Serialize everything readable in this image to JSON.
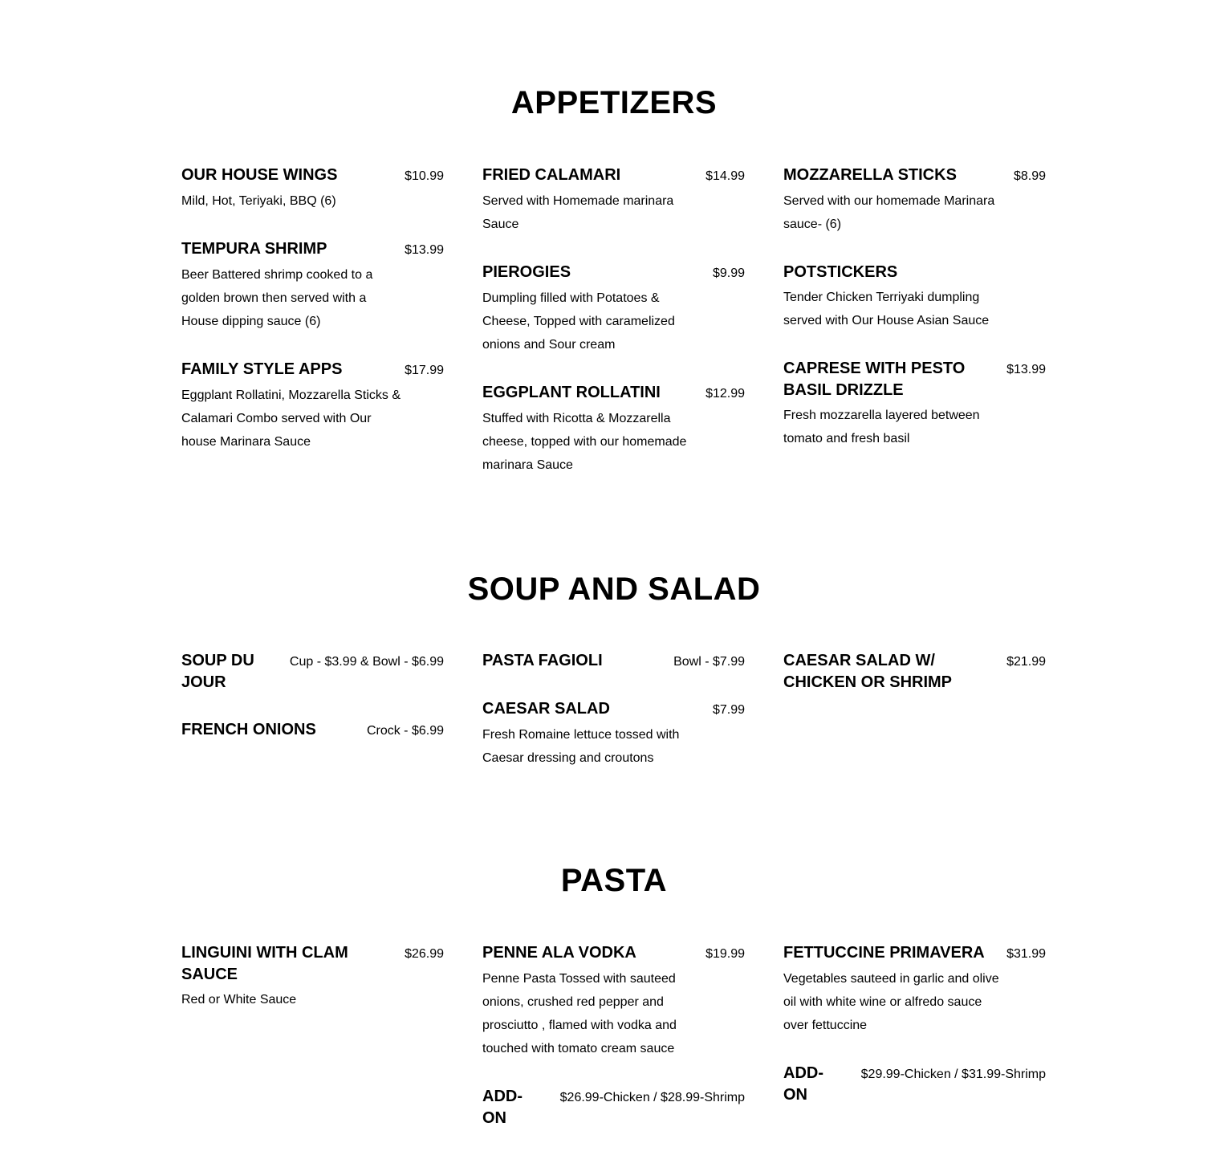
{
  "sections": [
    {
      "title": "APPETIZERS",
      "columns": [
        [
          {
            "name": "OUR HOUSE WINGS",
            "price": "$10.99",
            "desc": "Mild, Hot, Teriyaki, BBQ (6)"
          },
          {
            "name": "TEMPURA SHRIMP",
            "price": "$13.99",
            "desc": "Beer Battered shrimp cooked to a golden brown then served with a House dipping sauce (6)"
          },
          {
            "name": "FAMILY STYLE APPS",
            "price": "$17.99",
            "desc": "Eggplant Rollatini, Mozzarella Sticks & Calamari Combo served with Our house Marinara Sauce"
          }
        ],
        [
          {
            "name": "FRIED CALAMARI",
            "price": "$14.99",
            "desc": "Served with Homemade marinara Sauce"
          },
          {
            "name": "PIEROGIES",
            "price": "$9.99",
            "desc": "Dumpling filled with Potatoes & Cheese, Topped with caramelized onions and Sour cream"
          },
          {
            "name": "EGGPLANT ROLLATINI",
            "price": "$12.99",
            "desc": "Stuffed with Ricotta & Mozzarella cheese, topped with our homemade marinara Sauce"
          }
        ],
        [
          {
            "name": "MOZZARELLA STICKS",
            "price": "$8.99",
            "desc": "Served with our homemade Marinara sauce- (6)"
          },
          {
            "name": "POTSTICKERS",
            "price": "",
            "desc": "Tender Chicken Terriyaki dumpling served with Our House Asian Sauce"
          },
          {
            "name": "CAPRESE WITH PESTO BASIL DRIZZLE",
            "price": "$13.99",
            "desc": "Fresh mozzarella layered between tomato and fresh basil"
          }
        ]
      ]
    },
    {
      "title": "SOUP AND SALAD",
      "columns": [
        [
          {
            "name": "SOUP DU JOUR",
            "price": "Cup - $3.99 & Bowl - $6.99",
            "desc": ""
          },
          {
            "name": "FRENCH ONIONS",
            "price": "Crock - $6.99",
            "desc": ""
          }
        ],
        [
          {
            "name": "PASTA FAGIOLI",
            "price": "Bowl - $7.99",
            "desc": ""
          },
          {
            "name": "CAESAR SALAD",
            "price": "$7.99",
            "desc": "Fresh Romaine lettuce tossed with Caesar dressing and croutons"
          }
        ],
        [
          {
            "name": "CAESAR SALAD W/ CHICKEN OR SHRIMP",
            "price": "$21.99",
            "desc": ""
          }
        ]
      ]
    },
    {
      "title": "PASTA",
      "columns": [
        [
          {
            "name": "LINGUINI WITH CLAM SAUCE",
            "price": "$26.99",
            "desc": "Red or White Sauce"
          }
        ],
        [
          {
            "name": "PENNE ALA VODKA",
            "price": "$19.99",
            "desc": "Penne Pasta Tossed with sauteed onions, crushed red pepper and prosciutto , flamed with vodka and touched with tomato cream sauce"
          },
          {
            "name": "ADD-ON",
            "price": "$26.99-Chicken / $28.99-Shrimp",
            "desc": ""
          }
        ],
        [
          {
            "name": "FETTUCCINE PRIMAVERA",
            "price": "$31.99",
            "desc": "Vegetables sauteed in garlic and olive oil with white wine or alfredo sauce over fettuccine"
          },
          {
            "name": "ADD-ON",
            "price": "$29.99-Chicken / $31.99-Shrimp",
            "desc": ""
          }
        ]
      ]
    }
  ]
}
